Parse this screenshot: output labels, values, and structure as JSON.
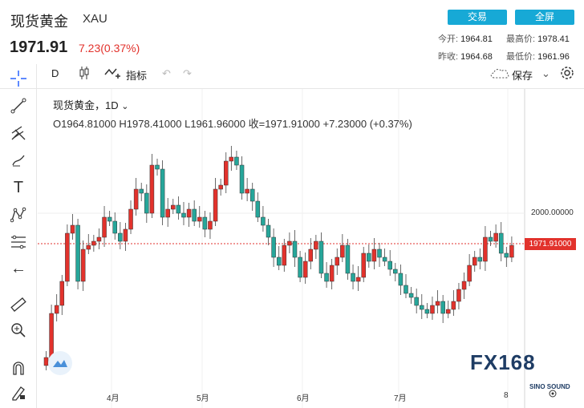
{
  "header": {
    "title": "现货黄金",
    "symbol": "XAU",
    "price": "1971.91",
    "change": "7.23(0.37%)",
    "trade_label": "交易",
    "fullscreen_label": "全屏",
    "stats": {
      "open_label": "今开:",
      "open": "1964.81",
      "high_label": "最高价:",
      "high": "1978.41",
      "prev_close_label": "昨收:",
      "prev_close": "1964.68",
      "low_label": "最低价:",
      "low": "1961.96"
    }
  },
  "toolbar": {
    "interval": "D",
    "indicators_label": "指标",
    "save_label": "保存"
  },
  "chart_legend": {
    "name": "现货黄金，1D",
    "ohlc": "O1964.81000  H1978.41000  L1961.96000  收=1971.91000  +7.23000 (+0.37%)"
  },
  "axis": {
    "level_label": "2000.00000",
    "last_price_tag": "1971.91000",
    "months": [
      "4月",
      "5月",
      "6月",
      "7月",
      "8"
    ]
  },
  "watermark": {
    "main": "FX168",
    "sub": "SINO SOUND"
  },
  "colors": {
    "up": "#26a69a",
    "down": "#e2322c",
    "accent": "#17a9d6"
  },
  "chart_data": {
    "type": "candlestick",
    "last_price": 1971.91,
    "reference_level": 2000.0,
    "x_labels": [
      "4月",
      "5月",
      "6月",
      "7月",
      "8"
    ]
  }
}
